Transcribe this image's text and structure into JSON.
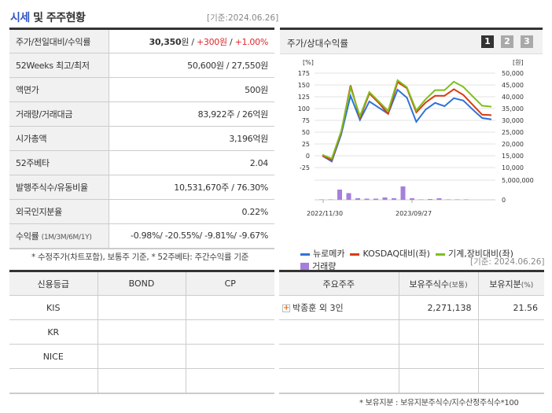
{
  "header": {
    "title_highlight": "시세",
    "title_rest": " 및 주주현황",
    "basis_date": "[기준:2024.06.26]"
  },
  "info_table": {
    "rows": [
      {
        "label": "주가/전일대비/수익률",
        "price": "30,350",
        "won": "원",
        "sep": " / ",
        "change": "+300원",
        "sep2": " / ",
        "pct": "+1.00%"
      },
      {
        "label": "52Weeks 최고/최저",
        "value": "50,600원 / 27,550원"
      },
      {
        "label": "액면가",
        "value": "500원"
      },
      {
        "label": "거래량/거래대금",
        "value": "83,922주 / 26억원"
      },
      {
        "label": "시가총액",
        "value": "3,196억원"
      },
      {
        "label": "52주베타",
        "value": "2.04"
      },
      {
        "label": "발행주식수/유동비율",
        "value": "10,531,670주 / 76.30%"
      },
      {
        "label": "외국인지분율",
        "value": "0.22%"
      },
      {
        "label": "수익률",
        "label_sub": "(1M/3M/6M/1Y)",
        "value": "-0.98%/ -20.55%/ -9.81%/ -9.67%"
      }
    ],
    "note": "* 수정주가(차트포함), 보통주 기준, * 52주베타: 주간수익률 기준"
  },
  "chart_panel": {
    "title": "주가/상대수익률",
    "pages": [
      "1",
      "2",
      "3"
    ],
    "active_page": "1"
  },
  "chart_data": {
    "type": "line",
    "title": "주가/상대수익률",
    "left_axis_label": "[%]",
    "right_axis_label": "[원]",
    "left_ticks": [
      175,
      150,
      125,
      100,
      75,
      50,
      25,
      0,
      -25
    ],
    "right_ticks": [
      "50,000",
      "45,000",
      "40,000",
      "35,000",
      "30,000",
      "25,000",
      "20,000",
      "15,000",
      "10,000"
    ],
    "volume_ticks": [
      "5,000,000",
      "0"
    ],
    "x_labels": [
      "2022/11/30",
      "2023/09/27"
    ],
    "ylim": [
      -25,
      175
    ],
    "series": [
      {
        "name": "뉴로메카",
        "color": "#2f73d8",
        "values": [
          0,
          -12,
          45,
          127,
          76,
          115,
          102,
          89,
          140,
          123,
          72,
          98,
          112,
          105,
          122,
          117,
          98,
          80,
          77
        ]
      },
      {
        "name": "KOSDAQ대비(좌)",
        "color": "#d93a12",
        "values": [
          0,
          -9,
          50,
          149,
          80,
          132,
          112,
          89,
          156,
          143,
          92,
          113,
          127,
          127,
          141,
          129,
          108,
          87,
          86
        ]
      },
      {
        "name": "기계,장비대비(좌)",
        "color": "#7fbf1e",
        "values": [
          2,
          -6,
          52,
          144,
          84,
          135,
          115,
          95,
          160,
          145,
          96,
          120,
          139,
          139,
          157,
          146,
          126,
          106,
          104
        ]
      }
    ],
    "volume": {
      "name": "거래량",
      "color": "#a67fdb",
      "values": [
        0.1,
        0.1,
        2.6,
        1.7,
        0.4,
        0.3,
        0.3,
        0.6,
        0.4,
        3.4,
        0.4,
        0.1,
        0.2,
        0.4,
        0.1,
        0.1,
        0.1
      ],
      "unit": "millions"
    }
  },
  "legend": [
    "뉴로메카",
    "KOSDAQ대비(좌)",
    "기계,장비대비(좌)",
    "거래량"
  ],
  "credit_table": {
    "headers": [
      "신용등급",
      "BOND",
      "CP"
    ],
    "rows": [
      [
        "KIS",
        "",
        ""
      ],
      [
        "KR",
        "",
        ""
      ],
      [
        "NICE",
        "",
        ""
      ],
      [
        "",
        "",
        ""
      ]
    ]
  },
  "holders_table": {
    "basis_date": "[기준: 2024.06.26]",
    "headers": [
      "주요주주",
      "보유주식수",
      "(보통)",
      "보유지분",
      "(%)"
    ],
    "rows": [
      {
        "name": "박종훈 외 3인",
        "shares": "2,271,138",
        "pct": "21.56"
      }
    ],
    "note": "* 보유지분 : 보유지분주식수/지수산정주식수*100"
  }
}
